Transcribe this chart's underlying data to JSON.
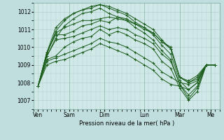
{
  "background_color": "#c0dede",
  "plot_bg_color": "#d0e8e8",
  "grid_color": "#b0cccc",
  "line_color": "#1a5c1a",
  "marker_color": "#1a5c1a",
  "xlabel": "Pression niveau de la mer( hPa )",
  "ylim": [
    1006.5,
    1012.5
  ],
  "yticks": [
    1007,
    1008,
    1009,
    1010,
    1011,
    1012
  ],
  "xtick_labels": [
    "Ven",
    "Sam",
    "Dim",
    "Lun",
    "Mar",
    "Me"
  ],
  "total_points": 21,
  "series": [
    [
      1007.8,
      1009.7,
      1010.8,
      1011.1,
      1011.3,
      1011.5,
      1011.5,
      1011.6,
      1011.7,
      1011.6,
      1011.5,
      1011.3,
      1011.0,
      1010.8,
      1010.3,
      1010.0,
      1008.3,
      1008.1,
      1008.4,
      1009.0,
      1009.0
    ],
    [
      1007.8,
      1009.7,
      1011.1,
      1011.6,
      1011.9,
      1012.1,
      1012.3,
      1012.4,
      1012.3,
      1012.1,
      1011.9,
      1011.6,
      1011.3,
      1011.0,
      1010.4,
      1009.9,
      1008.3,
      1008.0,
      1008.2,
      1009.0,
      1009.0
    ],
    [
      1007.8,
      1009.6,
      1010.9,
      1011.5,
      1011.9,
      1012.1,
      1012.2,
      1012.4,
      1012.2,
      1012.0,
      1011.8,
      1011.4,
      1011.1,
      1010.7,
      1010.1,
      1009.6,
      1008.1,
      1007.6,
      1008.0,
      1009.0,
      1009.0
    ],
    [
      1007.8,
      1009.5,
      1010.5,
      1011.2,
      1011.6,
      1011.9,
      1012.0,
      1012.2,
      1011.9,
      1011.7,
      1011.5,
      1011.1,
      1010.8,
      1010.4,
      1009.8,
      1009.3,
      1007.9,
      1007.1,
      1007.7,
      1009.0,
      1009.0
    ],
    [
      1007.8,
      1009.7,
      1010.7,
      1010.7,
      1010.9,
      1011.2,
      1011.3,
      1011.5,
      1011.4,
      1011.7,
      1011.6,
      1011.3,
      1011.1,
      1010.8,
      1010.3,
      1009.9,
      1008.3,
      1008.0,
      1008.3,
      1009.0,
      1009.0
    ],
    [
      1007.8,
      1009.5,
      1010.4,
      1010.5,
      1010.6,
      1010.8,
      1011.0,
      1011.2,
      1011.0,
      1011.1,
      1011.0,
      1010.7,
      1010.5,
      1010.2,
      1009.6,
      1009.2,
      1007.9,
      1007.3,
      1007.8,
      1009.0,
      1009.0
    ],
    [
      1007.8,
      1009.3,
      1009.5,
      1010.0,
      1010.3,
      1010.5,
      1010.6,
      1011.0,
      1010.7,
      1010.9,
      1010.7,
      1010.4,
      1010.2,
      1009.9,
      1009.2,
      1008.8,
      1007.7,
      1007.0,
      1007.5,
      1009.0,
      1009.0
    ],
    [
      1007.8,
      1009.2,
      1009.4,
      1009.6,
      1009.8,
      1010.0,
      1010.2,
      1010.5,
      1010.3,
      1010.2,
      1010.0,
      1009.7,
      1009.4,
      1009.1,
      1008.6,
      1008.3,
      1008.0,
      1007.9,
      1008.1,
      1009.0,
      1009.0
    ],
    [
      1007.8,
      1009.0,
      1009.2,
      1009.3,
      1009.5,
      1009.7,
      1009.9,
      1010.2,
      1010.0,
      1009.8,
      1009.6,
      1009.3,
      1009.0,
      1008.7,
      1008.2,
      1007.9,
      1007.8,
      1007.6,
      1008.0,
      1009.0,
      1009.0
    ]
  ],
  "xtick_positions": [
    0,
    3.5,
    7.5,
    12,
    16,
    19.5
  ],
  "figsize": [
    3.2,
    2.0
  ],
  "dpi": 100
}
